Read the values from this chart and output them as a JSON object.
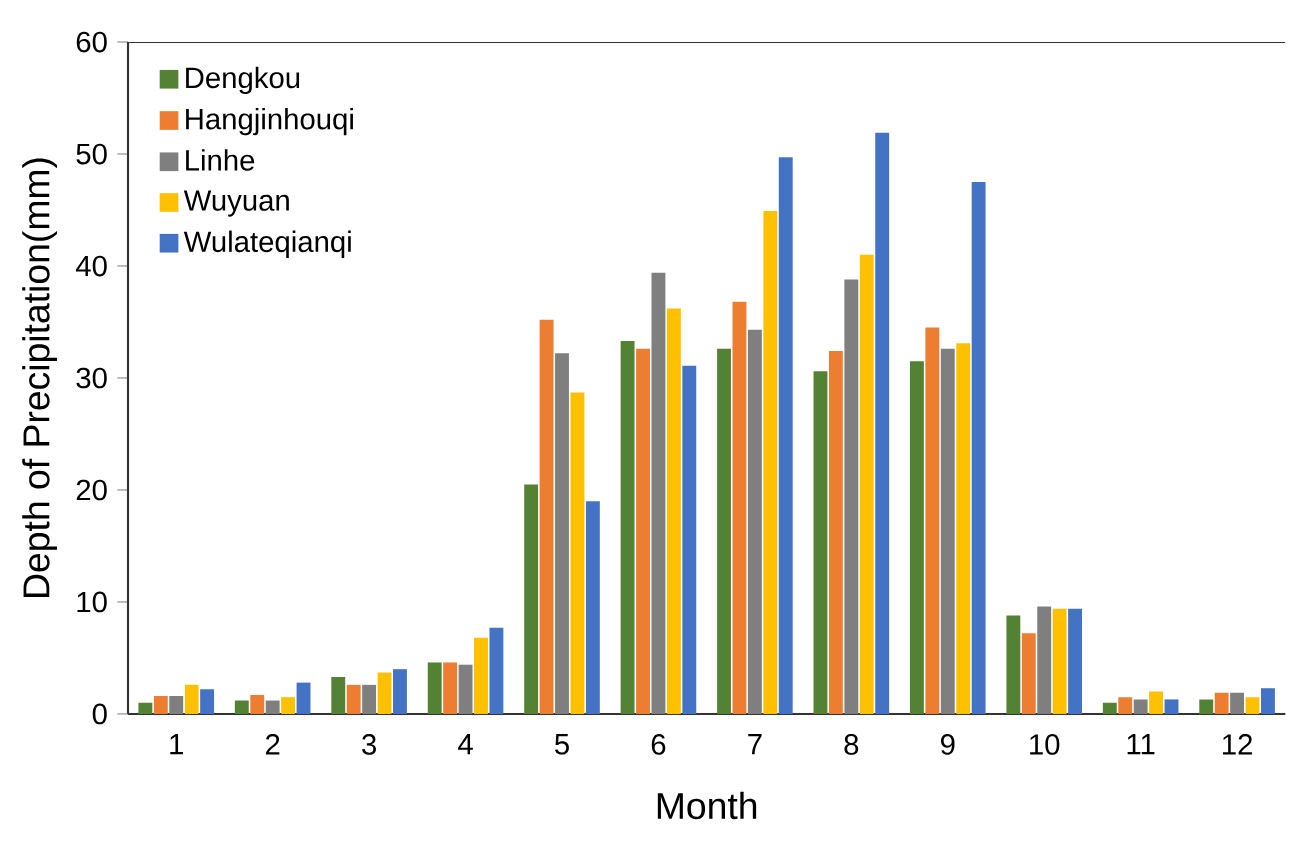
{
  "chart_data": {
    "type": "bar",
    "xlabel": "Month",
    "ylabel": "Depth of Precipitation(mm)",
    "categories": [
      "1",
      "2",
      "3",
      "4",
      "5",
      "6",
      "7",
      "8",
      "9",
      "10",
      "11",
      "12"
    ],
    "series": [
      {
        "name": "Dengkou",
        "color": "#548235",
        "values": [
          1.0,
          1.2,
          3.3,
          4.6,
          20.5,
          33.3,
          32.6,
          30.6,
          31.5,
          8.8,
          1.0,
          1.3
        ]
      },
      {
        "name": "Hangjinhouqi",
        "color": "#ed7d31",
        "values": [
          1.6,
          1.7,
          2.6,
          4.6,
          35.2,
          32.6,
          36.8,
          32.4,
          34.5,
          7.2,
          1.5,
          1.9
        ]
      },
      {
        "name": "Linhe",
        "color": "#7f7f7f",
        "values": [
          1.6,
          1.2,
          2.6,
          4.4,
          32.2,
          39.4,
          34.3,
          38.8,
          32.6,
          9.6,
          1.3,
          1.9
        ]
      },
      {
        "name": "Wuyuan",
        "color": "#ffc000",
        "values": [
          2.6,
          1.5,
          3.7,
          6.8,
          28.7,
          36.2,
          44.9,
          41.0,
          33.1,
          9.4,
          2.0,
          1.5
        ]
      },
      {
        "name": "Wulateqianqi",
        "color": "#4472c4",
        "values": [
          2.2,
          2.8,
          4.0,
          7.7,
          19.0,
          31.1,
          49.7,
          51.9,
          47.5,
          9.4,
          1.3,
          2.3
        ]
      }
    ],
    "ylim": [
      0,
      60
    ],
    "yticks": [
      0,
      10,
      20,
      30,
      40,
      50,
      60
    ],
    "grid": false,
    "legend": "top left"
  }
}
